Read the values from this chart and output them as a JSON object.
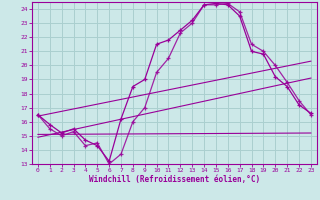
{
  "xlabel": "Windchill (Refroidissement éolien,°C)",
  "bg_color": "#cce8e8",
  "grid_color": "#aacfcf",
  "line_color": "#990099",
  "xlim": [
    -0.5,
    23.5
  ],
  "ylim": [
    13,
    24.5
  ],
  "xticks": [
    0,
    1,
    2,
    3,
    4,
    5,
    6,
    7,
    8,
    9,
    10,
    11,
    12,
    13,
    14,
    15,
    16,
    17,
    18,
    19,
    20,
    21,
    22,
    23
  ],
  "yticks": [
    13,
    14,
    15,
    16,
    17,
    18,
    19,
    20,
    21,
    22,
    23,
    24
  ],
  "curve1_x": [
    0,
    1,
    2,
    3,
    4,
    5,
    6,
    7,
    8,
    9,
    10,
    11,
    12,
    13,
    14,
    15,
    16,
    17,
    18,
    19,
    20,
    21,
    22,
    23
  ],
  "curve1_y": [
    16.5,
    15.8,
    15.2,
    15.5,
    14.7,
    14.3,
    13.2,
    16.2,
    18.5,
    19.0,
    21.5,
    21.8,
    22.5,
    23.2,
    24.3,
    24.4,
    24.3,
    23.5,
    21.0,
    20.8,
    19.2,
    18.5,
    17.2,
    16.6
  ],
  "curve2_x": [
    0,
    1,
    2,
    3,
    4,
    5,
    6,
    7,
    8,
    9,
    10,
    11,
    12,
    13,
    14,
    15,
    16,
    17,
    18,
    19,
    20,
    21,
    22,
    23
  ],
  "curve2_y": [
    16.5,
    15.5,
    15.0,
    15.3,
    14.3,
    14.5,
    13.0,
    13.7,
    16.0,
    17.0,
    19.5,
    20.5,
    22.3,
    23.0,
    24.3,
    24.3,
    24.4,
    23.8,
    21.5,
    21.0,
    20.0,
    18.8,
    17.5,
    16.5
  ],
  "line1_x": [
    0,
    23
  ],
  "line1_y": [
    16.4,
    20.3
  ],
  "line2_x": [
    0,
    23
  ],
  "line2_y": [
    15.1,
    15.2
  ],
  "line3_x": [
    0,
    23
  ],
  "line3_y": [
    14.9,
    19.1
  ]
}
